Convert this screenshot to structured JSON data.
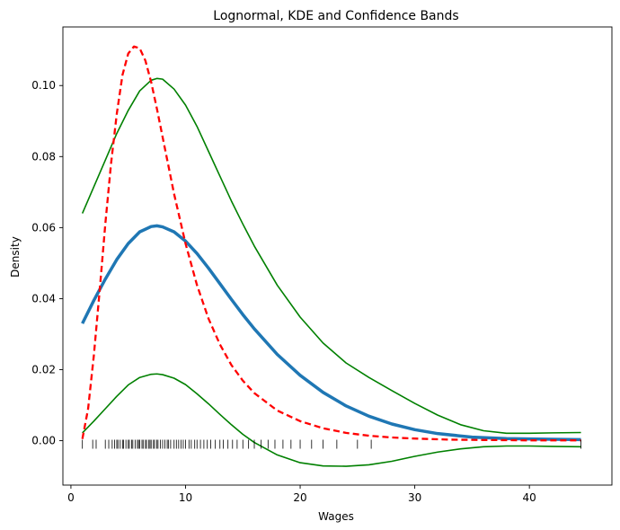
{
  "chart_data": {
    "type": "line",
    "title": "Lognormal, KDE and Confidence Bands",
    "xlabel": "Wages",
    "ylabel": "Density",
    "xlim": [
      -0.7,
      47.2
    ],
    "ylim": [
      -0.0125,
      0.1165
    ],
    "xticks": [
      0,
      10,
      20,
      30,
      40
    ],
    "yticks": [
      0.0,
      0.02,
      0.04,
      0.06,
      0.08,
      0.1
    ],
    "ytick_labels": [
      "0.00",
      "0.02",
      "0.04",
      "0.06",
      "0.08",
      "0.10"
    ],
    "grid": false,
    "legend": "none",
    "colors": {
      "kde": "#1f77b4",
      "lognormal": "#ff0000",
      "bands": "#008000",
      "rug": "#000000"
    },
    "series": [
      {
        "role": "kde",
        "style": "solid-thick",
        "x": [
          1,
          2,
          3,
          4,
          5,
          6,
          7,
          7.5,
          8,
          9,
          10,
          11,
          12,
          13,
          14,
          15,
          16,
          18,
          20,
          22,
          24,
          26,
          28,
          30,
          32,
          35,
          38,
          40,
          42,
          44.5
        ],
        "y": [
          0.033,
          0.0395,
          0.0455,
          0.051,
          0.0555,
          0.0588,
          0.0603,
          0.0605,
          0.0602,
          0.0588,
          0.0562,
          0.0527,
          0.0486,
          0.0442,
          0.0398,
          0.0355,
          0.0315,
          0.0243,
          0.0184,
          0.0136,
          0.0098,
          0.0069,
          0.0047,
          0.0031,
          0.002,
          0.001,
          0.0006,
          0.0005,
          0.0004,
          0.0003
        ]
      },
      {
        "role": "lognormal",
        "style": "dashed",
        "x": [
          1,
          1.5,
          2,
          2.5,
          3,
          3.5,
          4,
          4.5,
          5,
          5.5,
          6,
          6.5,
          7,
          7.5,
          8,
          9,
          10,
          11,
          12,
          13,
          14,
          15,
          16,
          18,
          20,
          22,
          24,
          26,
          28,
          30,
          33,
          36,
          40,
          44.5
        ],
        "y": [
          0.0005,
          0.009,
          0.024,
          0.042,
          0.061,
          0.078,
          0.092,
          0.103,
          0.109,
          0.111,
          0.1105,
          0.107,
          0.101,
          0.0935,
          0.0855,
          0.0695,
          0.0555,
          0.0438,
          0.0344,
          0.0271,
          0.0213,
          0.0169,
          0.0134,
          0.0085,
          0.0055,
          0.0035,
          0.0022,
          0.0014,
          0.0009,
          0.0006,
          0.0003,
          0.0002,
          0.0001,
          0.0001
        ]
      },
      {
        "role": "upper-band",
        "style": "solid-thin",
        "x": [
          1,
          2,
          3,
          4,
          5,
          6,
          7,
          7.5,
          8,
          9,
          10,
          11,
          12,
          13,
          14,
          15,
          16,
          18,
          20,
          22,
          24,
          26,
          28,
          30,
          32,
          34,
          36,
          38,
          40,
          42,
          44.5
        ],
        "y": [
          0.064,
          0.0715,
          0.079,
          0.0865,
          0.093,
          0.0985,
          0.1015,
          0.102,
          0.1018,
          0.099,
          0.0945,
          0.0885,
          0.0815,
          0.0745,
          0.0675,
          0.061,
          0.0548,
          0.0438,
          0.0348,
          0.0275,
          0.0219,
          0.0178,
          0.0141,
          0.0105,
          0.0072,
          0.0045,
          0.0028,
          0.0021,
          0.0021,
          0.0022,
          0.0023
        ]
      },
      {
        "role": "lower-band",
        "style": "solid-thin",
        "x": [
          1,
          2,
          3,
          4,
          5,
          6,
          7,
          7.5,
          8,
          9,
          10,
          11,
          12,
          13,
          14,
          15,
          16,
          18,
          20,
          22,
          24,
          26,
          28,
          30,
          32,
          34,
          36,
          38,
          40,
          42,
          44.5
        ],
        "y": [
          0.0022,
          0.0055,
          0.009,
          0.0125,
          0.0157,
          0.0178,
          0.0187,
          0.0188,
          0.0186,
          0.0176,
          0.0158,
          0.0132,
          0.0104,
          0.0074,
          0.0045,
          0.0018,
          -0.0005,
          -0.004,
          -0.0062,
          -0.0071,
          -0.0072,
          -0.0068,
          -0.0058,
          -0.0044,
          -0.0032,
          -0.0023,
          -0.0017,
          -0.0015,
          -0.0015,
          -0.0016,
          -0.0017
        ]
      }
    ],
    "rug_y": -0.001,
    "rug": [
      1.0,
      1.9,
      2.2,
      3.0,
      3.3,
      3.6,
      3.8,
      4.0,
      4.1,
      4.3,
      4.5,
      4.6,
      4.8,
      5.0,
      5.1,
      5.3,
      5.4,
      5.6,
      5.8,
      5.9,
      6.0,
      6.2,
      6.3,
      6.5,
      6.6,
      6.8,
      6.9,
      7.0,
      7.2,
      7.3,
      7.5,
      7.6,
      7.8,
      8.0,
      8.2,
      8.4,
      8.5,
      8.7,
      9.0,
      9.2,
      9.4,
      9.6,
      9.8,
      10.0,
      10.3,
      10.5,
      10.8,
      11.0,
      11.3,
      11.6,
      11.9,
      12.2,
      12.6,
      13.0,
      13.3,
      13.7,
      14.1,
      14.5,
      15.0,
      15.5,
      16.0,
      16.6,
      17.2,
      17.8,
      18.5,
      19.2,
      20.0,
      21.0,
      22.0,
      23.2,
      25.0,
      26.2,
      44.5
    ]
  }
}
